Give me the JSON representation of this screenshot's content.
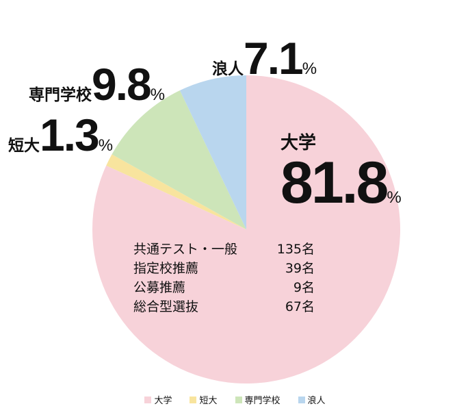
{
  "chart_data": {
    "type": "pie",
    "start": "top",
    "direction": "clockwise",
    "slices": [
      {
        "label": "大学",
        "value": 81.8,
        "color": "#f7d2d9"
      },
      {
        "label": "短大",
        "value": 1.3,
        "color": "#f8e49e"
      },
      {
        "label": "専門学校",
        "value": 9.8,
        "color": "#cde5b9"
      },
      {
        "label": "浪人",
        "value": 7.1,
        "color": "#b9d6ee"
      }
    ],
    "percent_symbol": "%",
    "legend": {
      "position": "bottom",
      "items": [
        {
          "label": "大学",
          "color": "#f7d2d9"
        },
        {
          "label": "短大",
          "color": "#f8e49e"
        },
        {
          "label": "専門学校",
          "color": "#cde5b9"
        },
        {
          "label": "浪人",
          "color": "#b9d6ee"
        }
      ]
    },
    "annotations": {
      "university_breakdown": [
        {
          "label": "共通テスト・一般",
          "value": "135名"
        },
        {
          "label": "指定校推薦",
          "value": "39名"
        },
        {
          "label": "公募推薦",
          "value": "9名"
        },
        {
          "label": "総合型選抜",
          "value": "67名"
        }
      ]
    }
  },
  "callouts": {
    "university": {
      "label": "大学",
      "value": "81.8",
      "unit": "%"
    },
    "junior_college": {
      "label": "短大",
      "value": "1.3",
      "unit": "%"
    },
    "vocational_school": {
      "label": "専門学校",
      "value": "9.8",
      "unit": "%"
    },
    "ronin": {
      "label": "浪人",
      "value": "7.1",
      "unit": "%"
    }
  }
}
